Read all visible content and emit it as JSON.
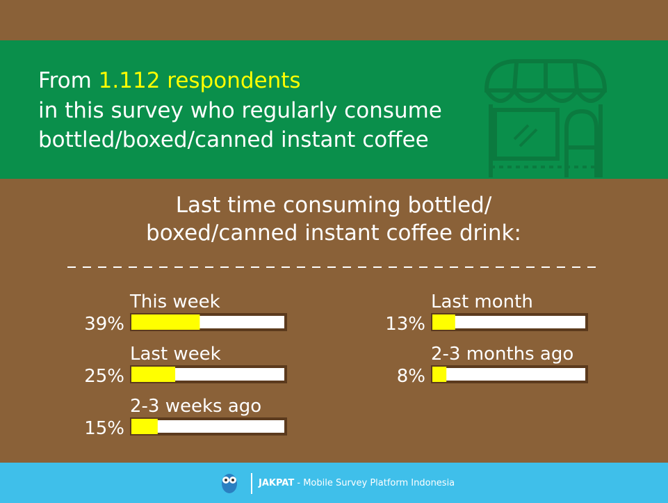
{
  "header": {
    "line1_prefix": "From",
    "line1_highlight": "1.112 respondents",
    "line2": "in this survey who regularly consume",
    "line3": "bottled/boxed/canned instant coffee"
  },
  "chart_data": {
    "type": "bar",
    "title": [
      "Last time consuming bottled/",
      "boxed/canned instant coffee drink:"
    ],
    "categories": [
      "This week",
      "Last week",
      "2-3 weeks ago",
      "Last month",
      "2-3 months ago"
    ],
    "values": [
      39,
      25,
      15,
      13,
      8
    ],
    "value_labels": [
      "39%",
      "25%",
      "15%",
      "13%",
      "8%"
    ],
    "color": "#ffff00",
    "xlim": [
      0,
      88
    ]
  },
  "footer": {
    "brand": "JAKPAT",
    "tagline": "- Mobile Survey Platform Indonesia"
  }
}
